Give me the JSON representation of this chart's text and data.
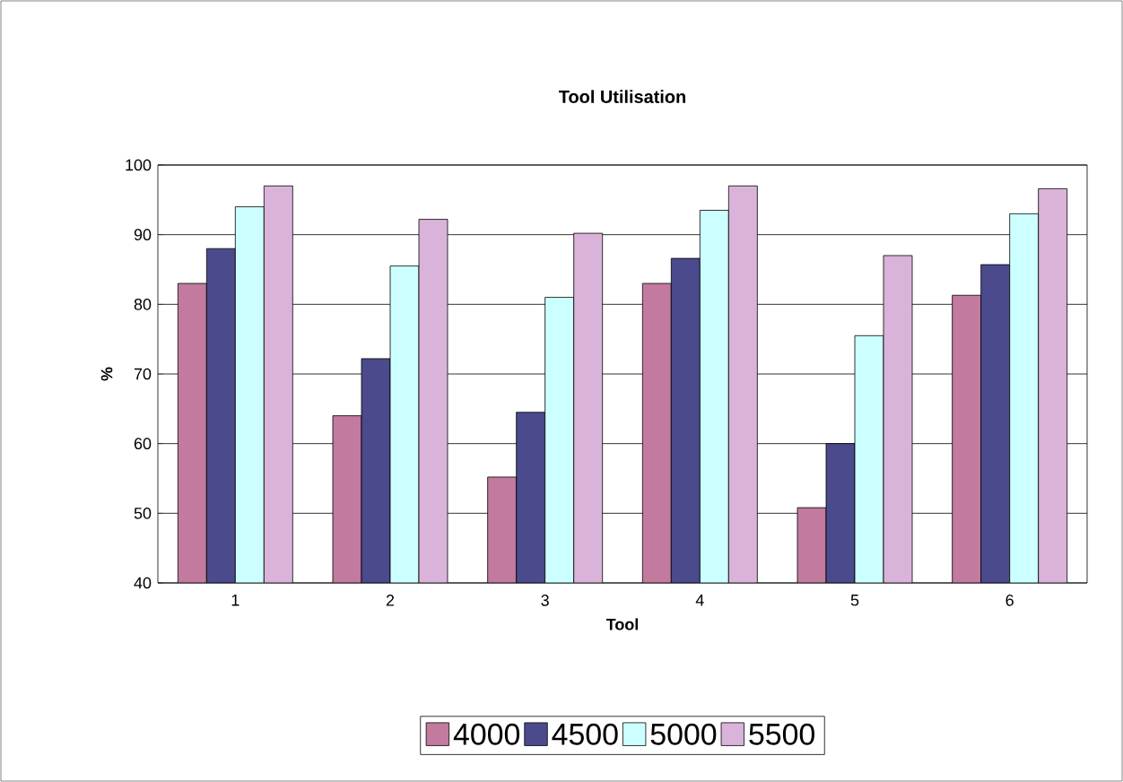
{
  "chart_data": {
    "type": "bar",
    "title": "Tool Utilisation",
    "xlabel": "Tool",
    "ylabel": "%",
    "categories": [
      "1",
      "2",
      "3",
      "4",
      "5",
      "6"
    ],
    "series": [
      {
        "name": "4000",
        "color": "#c27a9e",
        "values": [
          83,
          64,
          55.2,
          83,
          50.8,
          81.3
        ]
      },
      {
        "name": "4500",
        "color": "#4a4a8c",
        "values": [
          88,
          72.2,
          64.5,
          86.6,
          60,
          85.7
        ]
      },
      {
        "name": "5000",
        "color": "#ccffff",
        "values": [
          94,
          85.5,
          81,
          93.5,
          75.5,
          93
        ]
      },
      {
        "name": "5500",
        "color": "#d9b3d9",
        "values": [
          97,
          92.2,
          90.2,
          97,
          87,
          96.6
        ]
      }
    ],
    "ylim": [
      40,
      100
    ],
    "yticks": [
      40,
      50,
      60,
      70,
      80,
      90,
      100
    ],
    "grid": "y",
    "legend": "bottom"
  }
}
